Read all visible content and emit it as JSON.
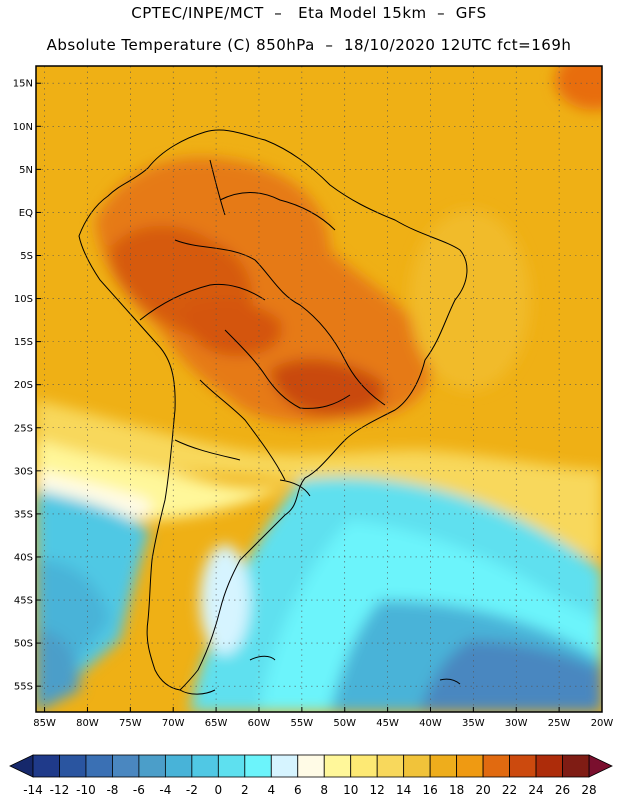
{
  "title_line1": "CPTEC/INPE/MCT  –   Eta Model 15km  –  GFS",
  "title_line2": "Absolute Temperature (C) 850hPa  –  18/10/2020 12UTC fct=169h",
  "map": {
    "lon_range": [
      -86,
      -20
    ],
    "lat_range": [
      -58,
      17
    ],
    "lat_ticks": [
      {
        "value": 15,
        "label": "15N"
      },
      {
        "value": 10,
        "label": "10N"
      },
      {
        "value": 5,
        "label": "5N"
      },
      {
        "value": 0,
        "label": "EQ"
      },
      {
        "value": -5,
        "label": "5S"
      },
      {
        "value": -10,
        "label": "10S"
      },
      {
        "value": -15,
        "label": "15S"
      },
      {
        "value": -20,
        "label": "20S"
      },
      {
        "value": -25,
        "label": "25S"
      },
      {
        "value": -30,
        "label": "30S"
      },
      {
        "value": -35,
        "label": "35S"
      },
      {
        "value": -40,
        "label": "40S"
      },
      {
        "value": -45,
        "label": "45S"
      },
      {
        "value": -50,
        "label": "50S"
      },
      {
        "value": -55,
        "label": "55S"
      }
    ],
    "lon_ticks": [
      {
        "value": -85,
        "label": "85W"
      },
      {
        "value": -80,
        "label": "80W"
      },
      {
        "value": -75,
        "label": "75W"
      },
      {
        "value": -70,
        "label": "70W"
      },
      {
        "value": -65,
        "label": "65W"
      },
      {
        "value": -60,
        "label": "60W"
      },
      {
        "value": -55,
        "label": "55W"
      },
      {
        "value": -50,
        "label": "50W"
      },
      {
        "value": -45,
        "label": "45W"
      },
      {
        "value": -40,
        "label": "40W"
      },
      {
        "value": -35,
        "label": "35W"
      },
      {
        "value": -30,
        "label": "30W"
      },
      {
        "value": -25,
        "label": "25W"
      },
      {
        "value": -20,
        "label": "20W"
      }
    ]
  },
  "colorbar": {
    "labels": [
      "-14",
      "-12",
      "-10",
      "-8",
      "-6",
      "-4",
      "-2",
      "0",
      "2",
      "4",
      "6",
      "8",
      "10",
      "12",
      "14",
      "16",
      "18",
      "20",
      "22",
      "24",
      "26",
      "28"
    ],
    "colors": [
      "#1f3a8a",
      "#2a55a0",
      "#3a70b4",
      "#4a87c0",
      "#4b9ec9",
      "#48b3d8",
      "#50c8e4",
      "#5ee0ef",
      "#6cf4fb",
      "#d6f4ff",
      "#fffbe6",
      "#fff79a",
      "#fde974",
      "#f8d85c",
      "#f1c33a",
      "#eead1c",
      "#ef9a12",
      "#e16a10",
      "#cc4a0e",
      "#ad2c0a",
      "#7f1c14"
    ],
    "end_low": "#16286b",
    "end_high": "#7a0f2e"
  }
}
